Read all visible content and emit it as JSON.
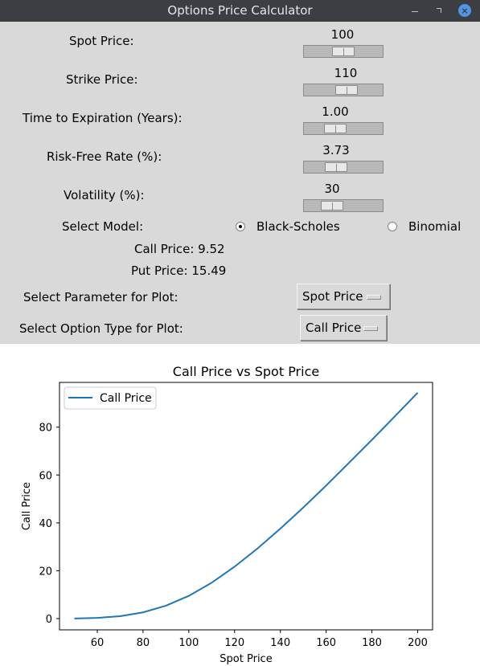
{
  "window": {
    "title": "Options Price Calculator"
  },
  "controls": {
    "spot": {
      "label": "Spot Price:",
      "value": "100",
      "fraction": 0.5
    },
    "strike": {
      "label": "Strike Price:",
      "value": "110",
      "fraction": 0.55
    },
    "expiry": {
      "label": "Time to Expiration (Years):",
      "value": "1.00",
      "fraction": 0.35
    },
    "rate": {
      "label": "Risk-Free Rate (%):",
      "value": "3.73",
      "fraction": 0.37
    },
    "vol": {
      "label": "Volatility (%):",
      "value": "30",
      "fraction": 0.3
    }
  },
  "model": {
    "label": "Select Model:",
    "options": [
      "Black-Scholes",
      "Binomial"
    ],
    "selected": "Black-Scholes"
  },
  "results": {
    "call": "Call Price: 9.52",
    "put": "Put Price: 15.49"
  },
  "plot_param": {
    "label": "Select Parameter for Plot:",
    "selected": "Spot Price"
  },
  "option_type": {
    "label": "Select Option Type for Plot:",
    "selected": "Call Price"
  },
  "chart_data": {
    "type": "line",
    "title": "Call Price vs Spot Price",
    "xlabel": "Spot Price",
    "ylabel": "Call Price",
    "xlim": [
      43.5,
      206.5
    ],
    "ylim": [
      -4.7,
      98.7
    ],
    "xticks": [
      60,
      80,
      100,
      120,
      140,
      160,
      180,
      200
    ],
    "yticks": [
      0,
      20,
      40,
      60,
      80
    ],
    "grid": false,
    "legend": "top-left",
    "series": [
      {
        "name": "Call Price",
        "color": "#1f77b4",
        "x": [
          50,
          60,
          70,
          80,
          90,
          100,
          110,
          120,
          130,
          140,
          150,
          160,
          170,
          180,
          190,
          200
        ],
        "y": [
          0.05,
          0.3,
          1.0,
          2.6,
          5.4,
          9.5,
          15.0,
          21.7,
          29.3,
          37.6,
          46.4,
          55.6,
          65.1,
          74.7,
          84.5,
          94.4
        ]
      }
    ]
  }
}
